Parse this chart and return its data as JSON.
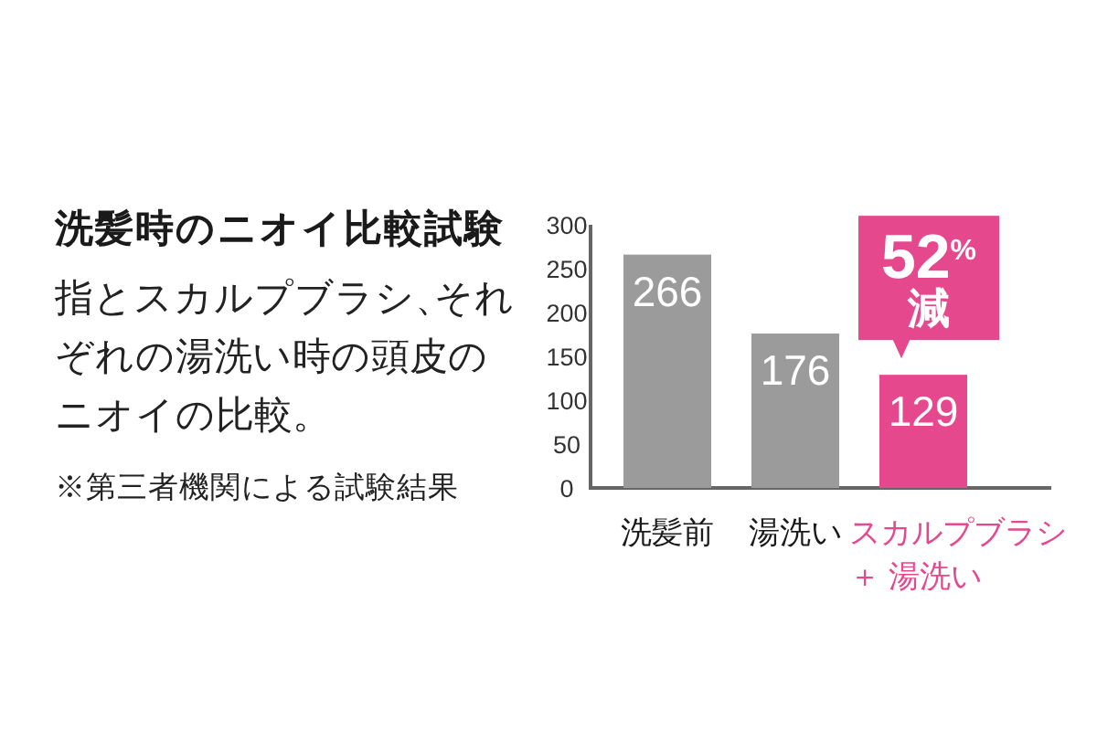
{
  "chart_data": {
    "type": "bar",
    "title": "洗髪時のニオイ比較試験",
    "subtitle": "指とスカルプブラシ、それぞれの湯洗い時の頭皮のニオイの比較。",
    "categories": [
      "洗髪前",
      "湯洗い",
      "スカルプブラシ＋ 湯洗い"
    ],
    "values": [
      266,
      176,
      129
    ],
    "colors": [
      "#9b9b9b",
      "#9b9b9b",
      "#e5488d"
    ],
    "ylim": [
      0,
      300
    ],
    "yticks": [
      0,
      50,
      100,
      150,
      200,
      250,
      300
    ],
    "data_labels": true,
    "annotations": [
      {
        "text": "52%減",
        "x": "スカルプブラシ＋ 湯洗い",
        "y": 129
      },
      "※第三者機関による試験結果"
    ]
  }
}
